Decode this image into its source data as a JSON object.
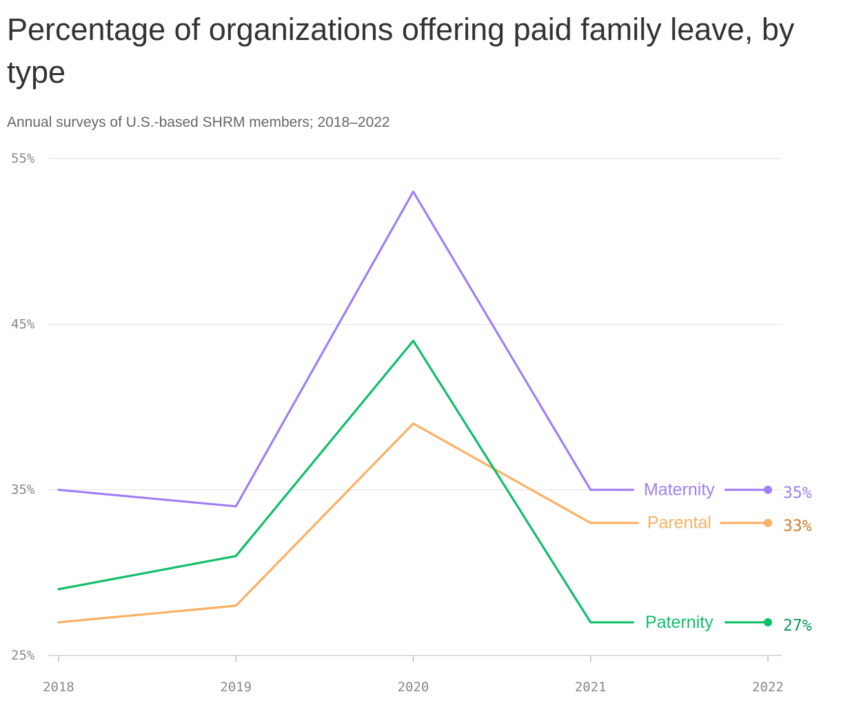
{
  "header": {
    "title": "Percentage of organizations offering paid family leave, by type",
    "subtitle": "Annual surveys of U.S.-based SHRM members; 2018–2022"
  },
  "chart_data": {
    "type": "line",
    "x": [
      "2018",
      "2019",
      "2020",
      "2021",
      "2022"
    ],
    "ylim": [
      25,
      55
    ],
    "yticks": [
      55,
      45,
      35,
      25
    ],
    "ytick_labels": [
      "55%",
      "45%",
      "35%",
      "25%"
    ],
    "grid": true,
    "series": [
      {
        "name": "Maternity",
        "values": [
          35,
          34,
          53,
          35,
          35
        ],
        "end_label": "35%",
        "color": "#a07ff5",
        "label_color": "#a07ff5"
      },
      {
        "name": "Parental",
        "values": [
          27,
          28,
          39,
          33,
          33
        ],
        "end_label": "33%",
        "color": "#fbb062",
        "label_color": "#c97d2a"
      },
      {
        "name": "Paternity",
        "values": [
          29,
          31,
          44,
          27,
          27
        ],
        "end_label": "27%",
        "color": "#0fbf6a",
        "label_color": "#0b9a55"
      }
    ]
  }
}
